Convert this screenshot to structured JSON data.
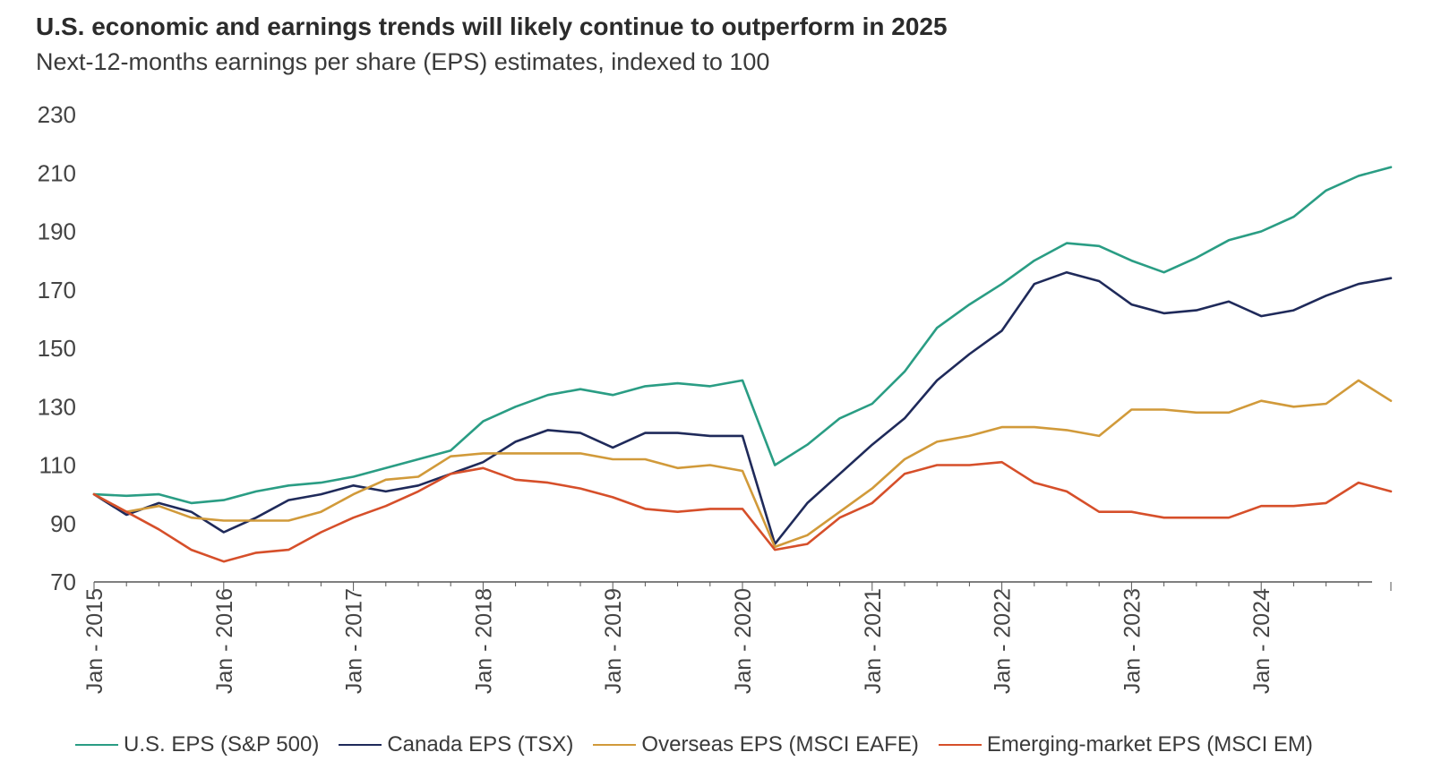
{
  "title": "U.S. economic and earnings trends will likely continue to outperform in 2025",
  "subtitle": "Next-12-months earnings per share (EPS) estimates, indexed to 100",
  "chart_data": {
    "type": "line",
    "x_start": "2015-01",
    "x_step": "quarter",
    "x_tick_labels": [
      "Jan - 2015",
      "Jan - 2016",
      "Jan - 2017",
      "Jan - 2018",
      "Jan - 2019",
      "Jan - 2020",
      "Jan - 2021",
      "Jan - 2022",
      "Jan - 2023",
      "Jan - 2024"
    ],
    "y_ticks": [
      70,
      90,
      110,
      130,
      150,
      170,
      190,
      210,
      230
    ],
    "ylim": [
      70,
      230
    ],
    "grid": false,
    "legend_position": "bottom",
    "series": [
      {
        "name": "U.S. EPS (S&P 500)",
        "color": "#2a9d84",
        "values": [
          100,
          99.5,
          100,
          97,
          98,
          101,
          103,
          104,
          106,
          109,
          112,
          115,
          125,
          130,
          134,
          136,
          134,
          137,
          138,
          137,
          139,
          110,
          117,
          126,
          131,
          142,
          157,
          165,
          172,
          180,
          186,
          185,
          180,
          176,
          181,
          187,
          190,
          195,
          204,
          209,
          212
        ]
      },
      {
        "name": "Canada EPS (TSX)",
        "color": "#1f2a5a",
        "values": [
          100,
          93,
          97,
          94,
          87,
          92,
          98,
          100,
          103,
          101,
          103,
          107,
          111,
          118,
          122,
          121,
          116,
          121,
          121,
          120,
          120,
          83,
          97,
          107,
          117,
          126,
          139,
          148,
          156,
          172,
          176,
          173,
          165,
          162,
          163,
          166,
          161,
          163,
          168,
          172,
          174
        ]
      },
      {
        "name": "Overseas EPS (MSCI EAFE)",
        "color": "#d19a3a",
        "values": [
          100,
          94,
          96,
          92,
          91,
          91,
          91,
          94,
          100,
          105,
          106,
          113,
          114,
          114,
          114,
          114,
          112,
          112,
          109,
          110,
          108,
          82,
          86,
          94,
          102,
          112,
          118,
          120,
          123,
          123,
          122,
          120,
          129,
          129,
          128,
          128,
          132,
          130,
          131,
          139,
          132
        ]
      },
      {
        "name": "Emerging-market EPS (MSCI EM)",
        "color": "#d64f2a",
        "values": [
          100,
          94,
          88,
          81,
          77,
          80,
          81,
          87,
          92,
          96,
          101,
          107,
          109,
          105,
          104,
          102,
          99,
          95,
          94,
          95,
          95,
          81,
          83,
          92,
          97,
          107,
          110,
          110,
          111,
          104,
          101,
          94,
          94,
          92,
          92,
          92,
          96,
          96,
          97,
          104,
          101
        ]
      }
    ]
  }
}
